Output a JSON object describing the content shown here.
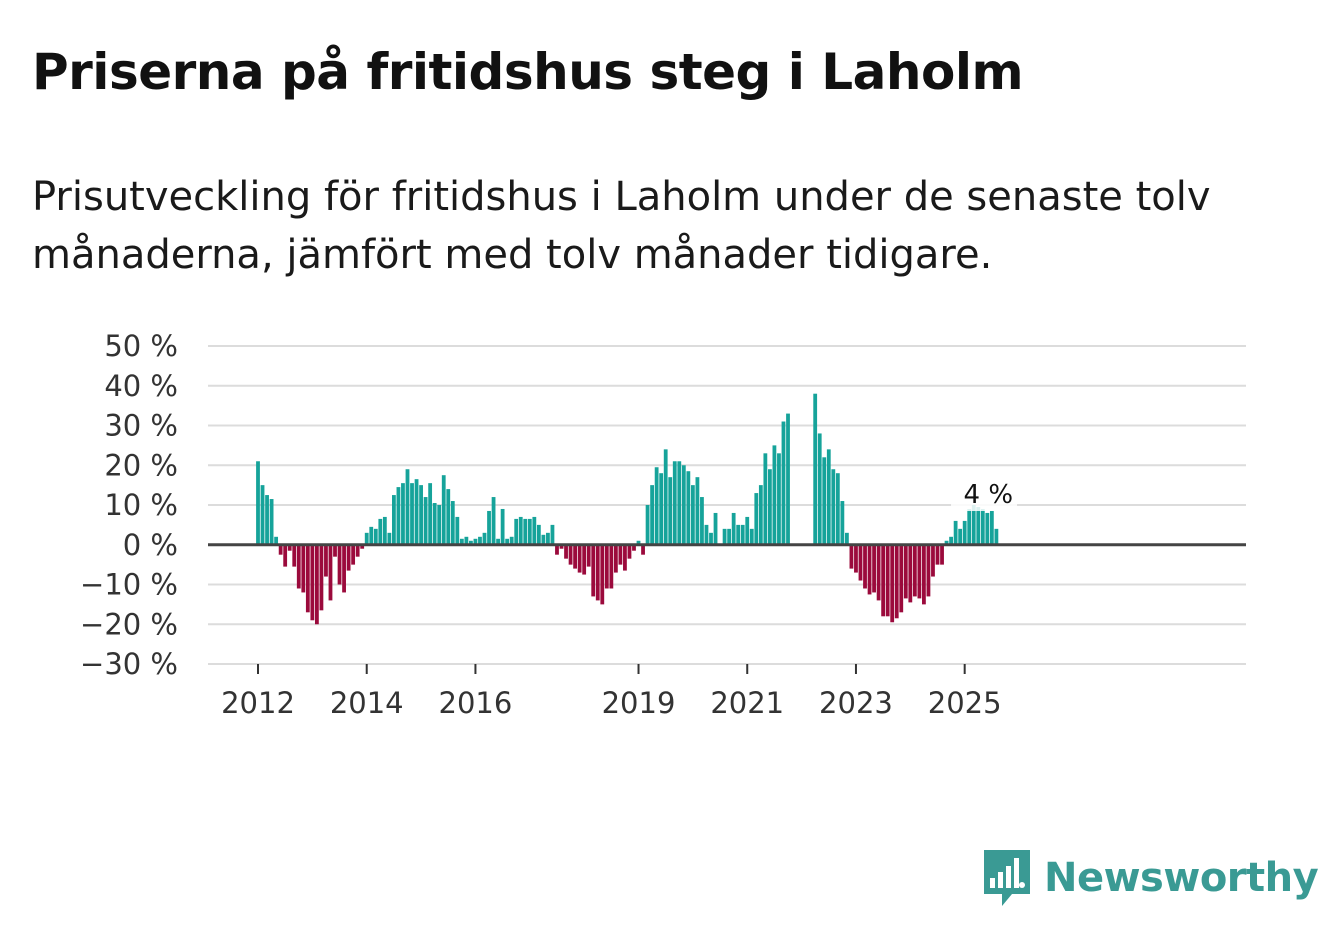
{
  "header": {
    "title": "Priserna på fritidshus steg i Laholm",
    "subtitle": "Prisutveckling för fritidshus i Laholm under de senaste tolv månaderna, jämfört med tolv månader tidigare."
  },
  "brand": {
    "name": "Newsworthy"
  },
  "colors": {
    "positive": "#16a39a",
    "negative": "#9b0a3c",
    "grid": "#dcdcdc",
    "zero_line": "#444444",
    "brand": "#3a9a94"
  },
  "chart_data": {
    "type": "bar",
    "title": "Priserna på fritidshus steg i Laholm",
    "subtitle": "Prisutveckling för fritidshus i Laholm under de senaste tolv månaderna, jämfört med tolv månader tidigare.",
    "ylabel": "",
    "xlabel": "",
    "ylim": [
      -30,
      50
    ],
    "yticks": [
      50,
      40,
      30,
      20,
      10,
      0,
      -10,
      -20,
      -30
    ],
    "ytick_labels": [
      "50 %",
      "40 %",
      "30 %",
      "20 %",
      "10 %",
      "0 %",
      "−10 %",
      "−20 %",
      "−30 %"
    ],
    "xtick_labels": [
      {
        "label": "2012",
        "month_index": 0
      },
      {
        "label": "2014",
        "month_index": 24
      },
      {
        "label": "2016",
        "month_index": 48
      },
      {
        "label": "2019",
        "month_index": 84
      },
      {
        "label": "2021",
        "month_index": 108
      },
      {
        "label": "2023",
        "month_index": 132
      },
      {
        "label": "2025",
        "month_index": 156
      }
    ],
    "start": "2012-01",
    "values": [
      21,
      15,
      12.5,
      11.5,
      2,
      -2.5,
      -5.5,
      -1.5,
      -5.5,
      -11,
      -12,
      -17,
      -19,
      -20,
      -16.5,
      -8,
      -14,
      -3,
      -10,
      -12,
      -6.5,
      -5,
      -3,
      -1,
      3,
      4.5,
      4,
      6.5,
      7,
      3,
      12.5,
      14.5,
      15.5,
      19,
      15.5,
      16.5,
      15,
      12,
      15.5,
      10.5,
      10,
      17.5,
      14,
      11,
      7,
      1.5,
      2,
      1,
      1.5,
      2,
      3,
      8.5,
      12,
      1.5,
      9,
      1.5,
      2,
      6.5,
      7,
      6.5,
      6.5,
      7,
      5,
      2.5,
      3,
      5,
      -2.5,
      -1,
      -3.5,
      -5,
      -6,
      -7,
      -7.5,
      -5.5,
      -13,
      -14,
      -15,
      -11,
      -11,
      -7,
      -5,
      -6.5,
      -3.5,
      -1.5,
      1,
      -2.5,
      10,
      15,
      19.5,
      18,
      24,
      17,
      21,
      21,
      20,
      18.5,
      15,
      17,
      12,
      5,
      3,
      8,
      null,
      4,
      4,
      8,
      5,
      5,
      7,
      4,
      13,
      15,
      23,
      19,
      25,
      23,
      31,
      33,
      null,
      null,
      null,
      null,
      null,
      38,
      28,
      22,
      24,
      19,
      18,
      11,
      3,
      -6,
      -7,
      -9,
      -11,
      -12.5,
      -12,
      -14,
      -18,
      -18,
      -19.5,
      -18.5,
      -17,
      -13.5,
      -14.5,
      -13,
      -13.5,
      -15,
      -13,
      -8,
      -5,
      -5,
      1,
      2,
      6,
      4,
      6,
      9,
      10,
      9.5,
      9,
      8,
      8.5,
      4
    ],
    "value_label": "4 %",
    "value_label_index": 168
  }
}
